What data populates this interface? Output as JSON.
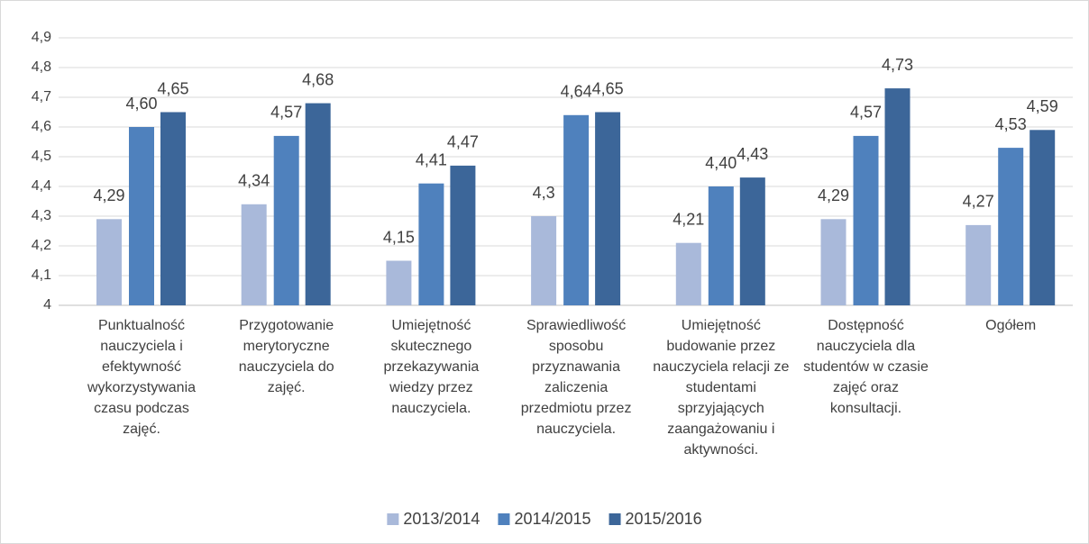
{
  "chart_data": {
    "type": "bar",
    "categories": [
      "Punktualność nauczyciela i efektywność wykorzystywania czasu podczas zajęć.",
      "Przygotowanie merytoryczne nauczyciela do zajęć.",
      "Umiejętność skutecznego przekazywania wiedzy przez nauczyciela.",
      "Sprawiedliwość sposobu przyznawania zaliczenia przedmiotu przez nauczyciela.",
      "Umiejętność budowanie przez nauczyciela relacji ze studentami sprzyjających zaangażowaniu i aktywności.",
      "Dostępność nauczyciela dla studentów w czasie zajęć oraz konsultacji.",
      "Ogółem"
    ],
    "series": [
      {
        "name": "2013/2014",
        "color": "#a9b9da",
        "values": [
          4.29,
          4.34,
          4.15,
          4.3,
          4.21,
          4.29,
          4.27
        ],
        "value_labels": [
          "4,29",
          "4,34",
          "4,15",
          "4,3",
          "4,21",
          "4,29",
          "4,27"
        ]
      },
      {
        "name": "2014/2015",
        "color": "#4f81bd",
        "values": [
          4.6,
          4.57,
          4.41,
          4.64,
          4.4,
          4.57,
          4.53
        ],
        "value_labels": [
          "4,60",
          "4,57",
          "4,41",
          "4,64",
          "4,40",
          "4,57",
          "4,53"
        ]
      },
      {
        "name": "2015/2016",
        "color": "#3c6699",
        "values": [
          4.65,
          4.68,
          4.47,
          4.65,
          4.43,
          4.73,
          4.59
        ],
        "value_labels": [
          "4,65",
          "4,68",
          "4,47",
          "4,65",
          "4,43",
          "4,73",
          "4,59"
        ]
      }
    ],
    "ylim": [
      4,
      4.9
    ],
    "yticks": [
      4,
      {
        "value": 4.1,
        "label": "4,1"
      },
      {
        "value": 4.2,
        "label": "4,2"
      },
      {
        "value": 4.3,
        "label": "4,3"
      },
      {
        "value": 4.4,
        "label": "4,4"
      },
      {
        "value": 4.5,
        "label": "4,5"
      },
      {
        "value": 4.6,
        "label": "4,6"
      },
      {
        "value": 4.7,
        "label": "4,7"
      },
      {
        "value": 4.8,
        "label": "4,8"
      },
      {
        "value": 4.9,
        "label": "4,9"
      }
    ],
    "grid": true,
    "legend": "bottom"
  }
}
